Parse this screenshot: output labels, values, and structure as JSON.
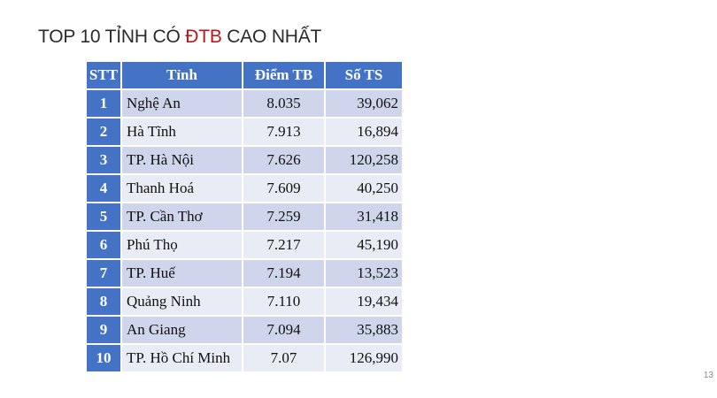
{
  "title": {
    "prefix": "TOP 10 TỈNH CÓ ",
    "highlight": "ĐTB",
    "suffix": " CAO NHẤT",
    "highlight_color": "#c0141b"
  },
  "page_number": "13",
  "colors": {
    "header": "#4472c4",
    "row_odd": "#cfd5ea",
    "row_even": "#e9ebf5"
  },
  "table": {
    "headers": [
      "STT",
      "Tỉnh",
      "Điểm TB",
      "Số TS"
    ],
    "rows": [
      {
        "stt": "1",
        "tinh": "Nghệ An",
        "diem": "8.035",
        "ts": "39,062"
      },
      {
        "stt": "2",
        "tinh": "Hà Tĩnh",
        "diem": "7.913",
        "ts": "16,894"
      },
      {
        "stt": "3",
        "tinh": "TP. Hà Nội",
        "diem": "7.626",
        "ts": "120,258"
      },
      {
        "stt": "4",
        "tinh": "Thanh Hoá",
        "diem": "7.609",
        "ts": "40,250"
      },
      {
        "stt": "5",
        "tinh": "TP. Cần Thơ",
        "diem": "7.259",
        "ts": "31,418"
      },
      {
        "stt": "6",
        "tinh": "Phú Thọ",
        "diem": "7.217",
        "ts": "45,190"
      },
      {
        "stt": "7",
        "tinh": "TP. Huế",
        "diem": "7.194",
        "ts": "13,523"
      },
      {
        "stt": "8",
        "tinh": "Quảng Ninh",
        "diem": "7.110",
        "ts": "19,434"
      },
      {
        "stt": "9",
        "tinh": "An Giang",
        "diem": "7.094",
        "ts": "35,883"
      },
      {
        "stt": "10",
        "tinh": "TP. Hồ Chí Minh",
        "diem": "7.07",
        "ts": "126,990"
      }
    ]
  }
}
